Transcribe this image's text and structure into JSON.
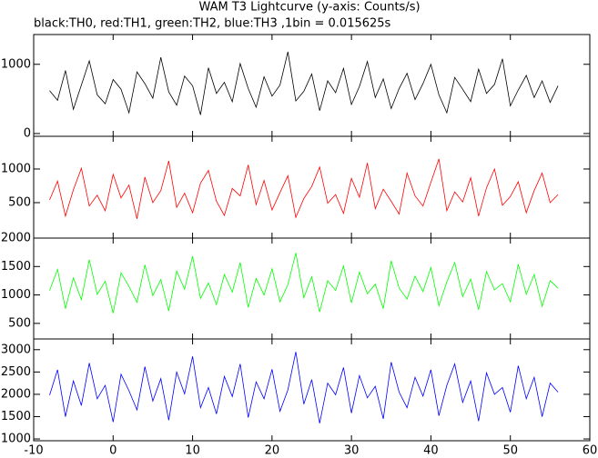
{
  "chart_data": [
    {
      "type": "line",
      "title": "WAM T3 Lightcurve (y-axis: Counts/s)",
      "subtitle": "black:TH0, red:TH1, green:TH2, blue:TH3 ,1bin = 0.015625s",
      "xlim": [
        -10,
        60
      ],
      "ylim": [
        -40,
        1430
      ],
      "yticks": [
        0,
        1000
      ],
      "x": [
        -8,
        -7,
        -6,
        -5,
        -4,
        -3,
        -2,
        -1,
        0,
        1,
        2,
        3,
        4,
        5,
        6,
        7,
        8,
        9,
        10,
        11,
        12,
        13,
        14,
        15,
        16,
        17,
        18,
        19,
        20,
        21,
        22,
        23,
        24,
        25,
        26,
        27,
        28,
        29,
        30,
        31,
        32,
        33,
        34,
        35,
        36,
        37,
        38,
        39,
        40,
        41,
        42,
        43,
        44,
        45,
        46,
        47,
        48,
        49,
        50,
        51,
        52,
        53,
        54,
        55,
        56
      ],
      "series": [
        {
          "color": "#000000",
          "values": [
            620,
            480,
            910,
            350,
            700,
            1050,
            560,
            430,
            780,
            640,
            300,
            890,
            720,
            510,
            1100,
            600,
            410,
            830,
            690,
            270,
            950,
            580,
            740,
            460,
            1010,
            650,
            380,
            820,
            540,
            700,
            1180,
            470,
            610,
            860,
            330,
            760,
            590,
            940,
            420,
            680,
            1040,
            520,
            790,
            360,
            650,
            870,
            490,
            720,
            1000,
            560,
            300,
            810,
            640,
            460,
            930,
            580,
            710,
            1080,
            400,
            630,
            840,
            520,
            760,
            450,
            690
          ]
        }
      ]
    },
    {
      "type": "line",
      "xlim": [
        -10,
        60
      ],
      "ylim": [
        -27,
        1486
      ],
      "yticks": [
        500,
        1000
      ],
      "x": [
        -8,
        -7,
        -6,
        -5,
        -4,
        -3,
        -2,
        -1,
        0,
        1,
        2,
        3,
        4,
        5,
        6,
        7,
        8,
        9,
        10,
        11,
        12,
        13,
        14,
        15,
        16,
        17,
        18,
        19,
        20,
        21,
        22,
        23,
        24,
        25,
        26,
        27,
        28,
        29,
        30,
        31,
        32,
        33,
        34,
        35,
        36,
        37,
        38,
        39,
        40,
        41,
        42,
        43,
        44,
        45,
        46,
        47,
        48,
        49,
        50,
        51,
        52,
        53,
        54,
        55,
        56
      ],
      "series": [
        {
          "color": "#ff0000",
          "values": [
            540,
            820,
            300,
            690,
            1010,
            450,
            610,
            380,
            920,
            570,
            760,
            260,
            880,
            500,
            680,
            1120,
            430,
            640,
            350,
            790,
            980,
            520,
            310,
            710,
            600,
            1060,
            470,
            830,
            390,
            650,
            900,
            280,
            560,
            740,
            1030,
            490,
            620,
            340,
            860,
            580,
            1090,
            410,
            700,
            520,
            330,
            940,
            600,
            450,
            800,
            1150,
            380,
            660,
            510,
            870,
            300,
            720,
            1000,
            460,
            590,
            810,
            350,
            680,
            940,
            500,
            620
          ]
        }
      ]
    },
    {
      "type": "line",
      "xlim": [
        -10,
        60
      ],
      "ylim": [
        226,
        2000
      ],
      "yticks": [
        500,
        1000,
        1500,
        2000
      ],
      "x": [
        -8,
        -7,
        -6,
        -5,
        -4,
        -3,
        -2,
        -1,
        0,
        1,
        2,
        3,
        4,
        5,
        6,
        7,
        8,
        9,
        10,
        11,
        12,
        13,
        14,
        15,
        16,
        17,
        18,
        19,
        20,
        21,
        22,
        23,
        24,
        25,
        26,
        27,
        28,
        29,
        30,
        31,
        32,
        33,
        34,
        35,
        36,
        37,
        38,
        39,
        40,
        41,
        42,
        43,
        44,
        45,
        46,
        47,
        48,
        49,
        50,
        51,
        52,
        53,
        54,
        55,
        56
      ],
      "series": [
        {
          "color": "#00ff00",
          "values": [
            1080,
            1450,
            760,
            1300,
            920,
            1620,
            1010,
            1240,
            680,
            1390,
            1150,
            870,
            1530,
            990,
            1270,
            720,
            1420,
            1100,
            1680,
            940,
            1210,
            830,
            1360,
            1050,
            1570,
            780,
            1290,
            1000,
            1460,
            880,
            1180,
            1740,
            950,
            1320,
            700,
            1250,
            1080,
            1510,
            860,
            1400,
            1020,
            1190,
            760,
            1600,
            1120,
            930,
            1330,
            1060,
            1480,
            810,
            1230,
            1570,
            970,
            1280,
            740,
            1410,
            1090,
            1200,
            880,
            1540,
            1010,
            1360,
            800,
            1250,
            1120
          ]
        }
      ]
    },
    {
      "type": "line",
      "xlim": [
        -10,
        60
      ],
      "xticks": [
        -10,
        0,
        10,
        20,
        30,
        40,
        50,
        60
      ],
      "ylim": [
        960,
        3240
      ],
      "yticks": [
        1000,
        1500,
        2000,
        2500,
        3000
      ],
      "x": [
        -8,
        -7,
        -6,
        -5,
        -4,
        -3,
        -2,
        -1,
        0,
        1,
        2,
        3,
        4,
        5,
        6,
        7,
        8,
        9,
        10,
        11,
        12,
        13,
        14,
        15,
        16,
        17,
        18,
        19,
        20,
        21,
        22,
        23,
        24,
        25,
        26,
        27,
        28,
        29,
        30,
        31,
        32,
        33,
        34,
        35,
        36,
        37,
        38,
        39,
        40,
        41,
        42,
        43,
        44,
        45,
        46,
        47,
        48,
        49,
        50,
        51,
        52,
        53,
        54,
        55,
        56
      ],
      "series": [
        {
          "color": "#0000ff",
          "values": [
            1980,
            2550,
            1500,
            2300,
            1750,
            2700,
            1900,
            2200,
            1380,
            2450,
            2080,
            1650,
            2620,
            1850,
            2350,
            1420,
            2500,
            2010,
            2850,
            1700,
            2150,
            1560,
            2400,
            1950,
            2680,
            1480,
            2280,
            1900,
            2560,
            1620,
            2100,
            2950,
            1780,
            2330,
            1350,
            2250,
            1990,
            2600,
            1580,
            2420,
            1920,
            2180,
            1450,
            2720,
            2050,
            1700,
            2380,
            1960,
            2550,
            1520,
            2200,
            2680,
            1820,
            2300,
            1400,
            2480,
            2000,
            2150,
            1600,
            2640,
            1900,
            2380,
            1500,
            2250,
            2050
          ]
        }
      ]
    }
  ]
}
